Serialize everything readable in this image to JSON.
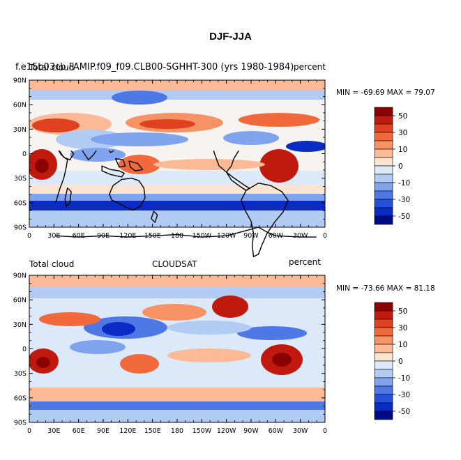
{
  "title": "DJF-JJA",
  "panels": [
    {
      "left_label": "Total cloud",
      "center_label": "f.e15b03cb.FAMIP.f09_f09.CLB00-SGHHT-300 (yrs 1980-1984)",
      "right_label": "percent",
      "stats": "MIN = -69.69  MAX =  79.07",
      "min": -69.69,
      "max": 79.07
    },
    {
      "left_label": "Total cloud",
      "center_label": "CLOUDSAT",
      "right_label": "percent",
      "stats": "MIN = -73.66  MAX =  81.18",
      "min": -73.66,
      "max": 81.18
    }
  ],
  "lat_ticks": [
    "90N",
    "60N",
    "30N",
    "0",
    "30S",
    "60S",
    "90S"
  ],
  "lon_ticks": [
    "0",
    "30E",
    "60E",
    "90E",
    "120E",
    "150E",
    "180",
    "150W",
    "120W",
    "90W",
    "60W",
    "30W",
    "0"
  ],
  "colorbar": {
    "labels": [
      "50",
      "30",
      "10",
      "0",
      "-10",
      "-30",
      "-50"
    ],
    "colors": [
      "#8b0000",
      "#c1190e",
      "#e0421f",
      "#f26a3c",
      "#f79264",
      "#fbb996",
      "#fde4d0",
      "#dce9f8",
      "#b1cbf2",
      "#7fa3ec",
      "#4d78e6",
      "#2350dc",
      "#0a2cc4",
      "#000b86"
    ]
  }
}
